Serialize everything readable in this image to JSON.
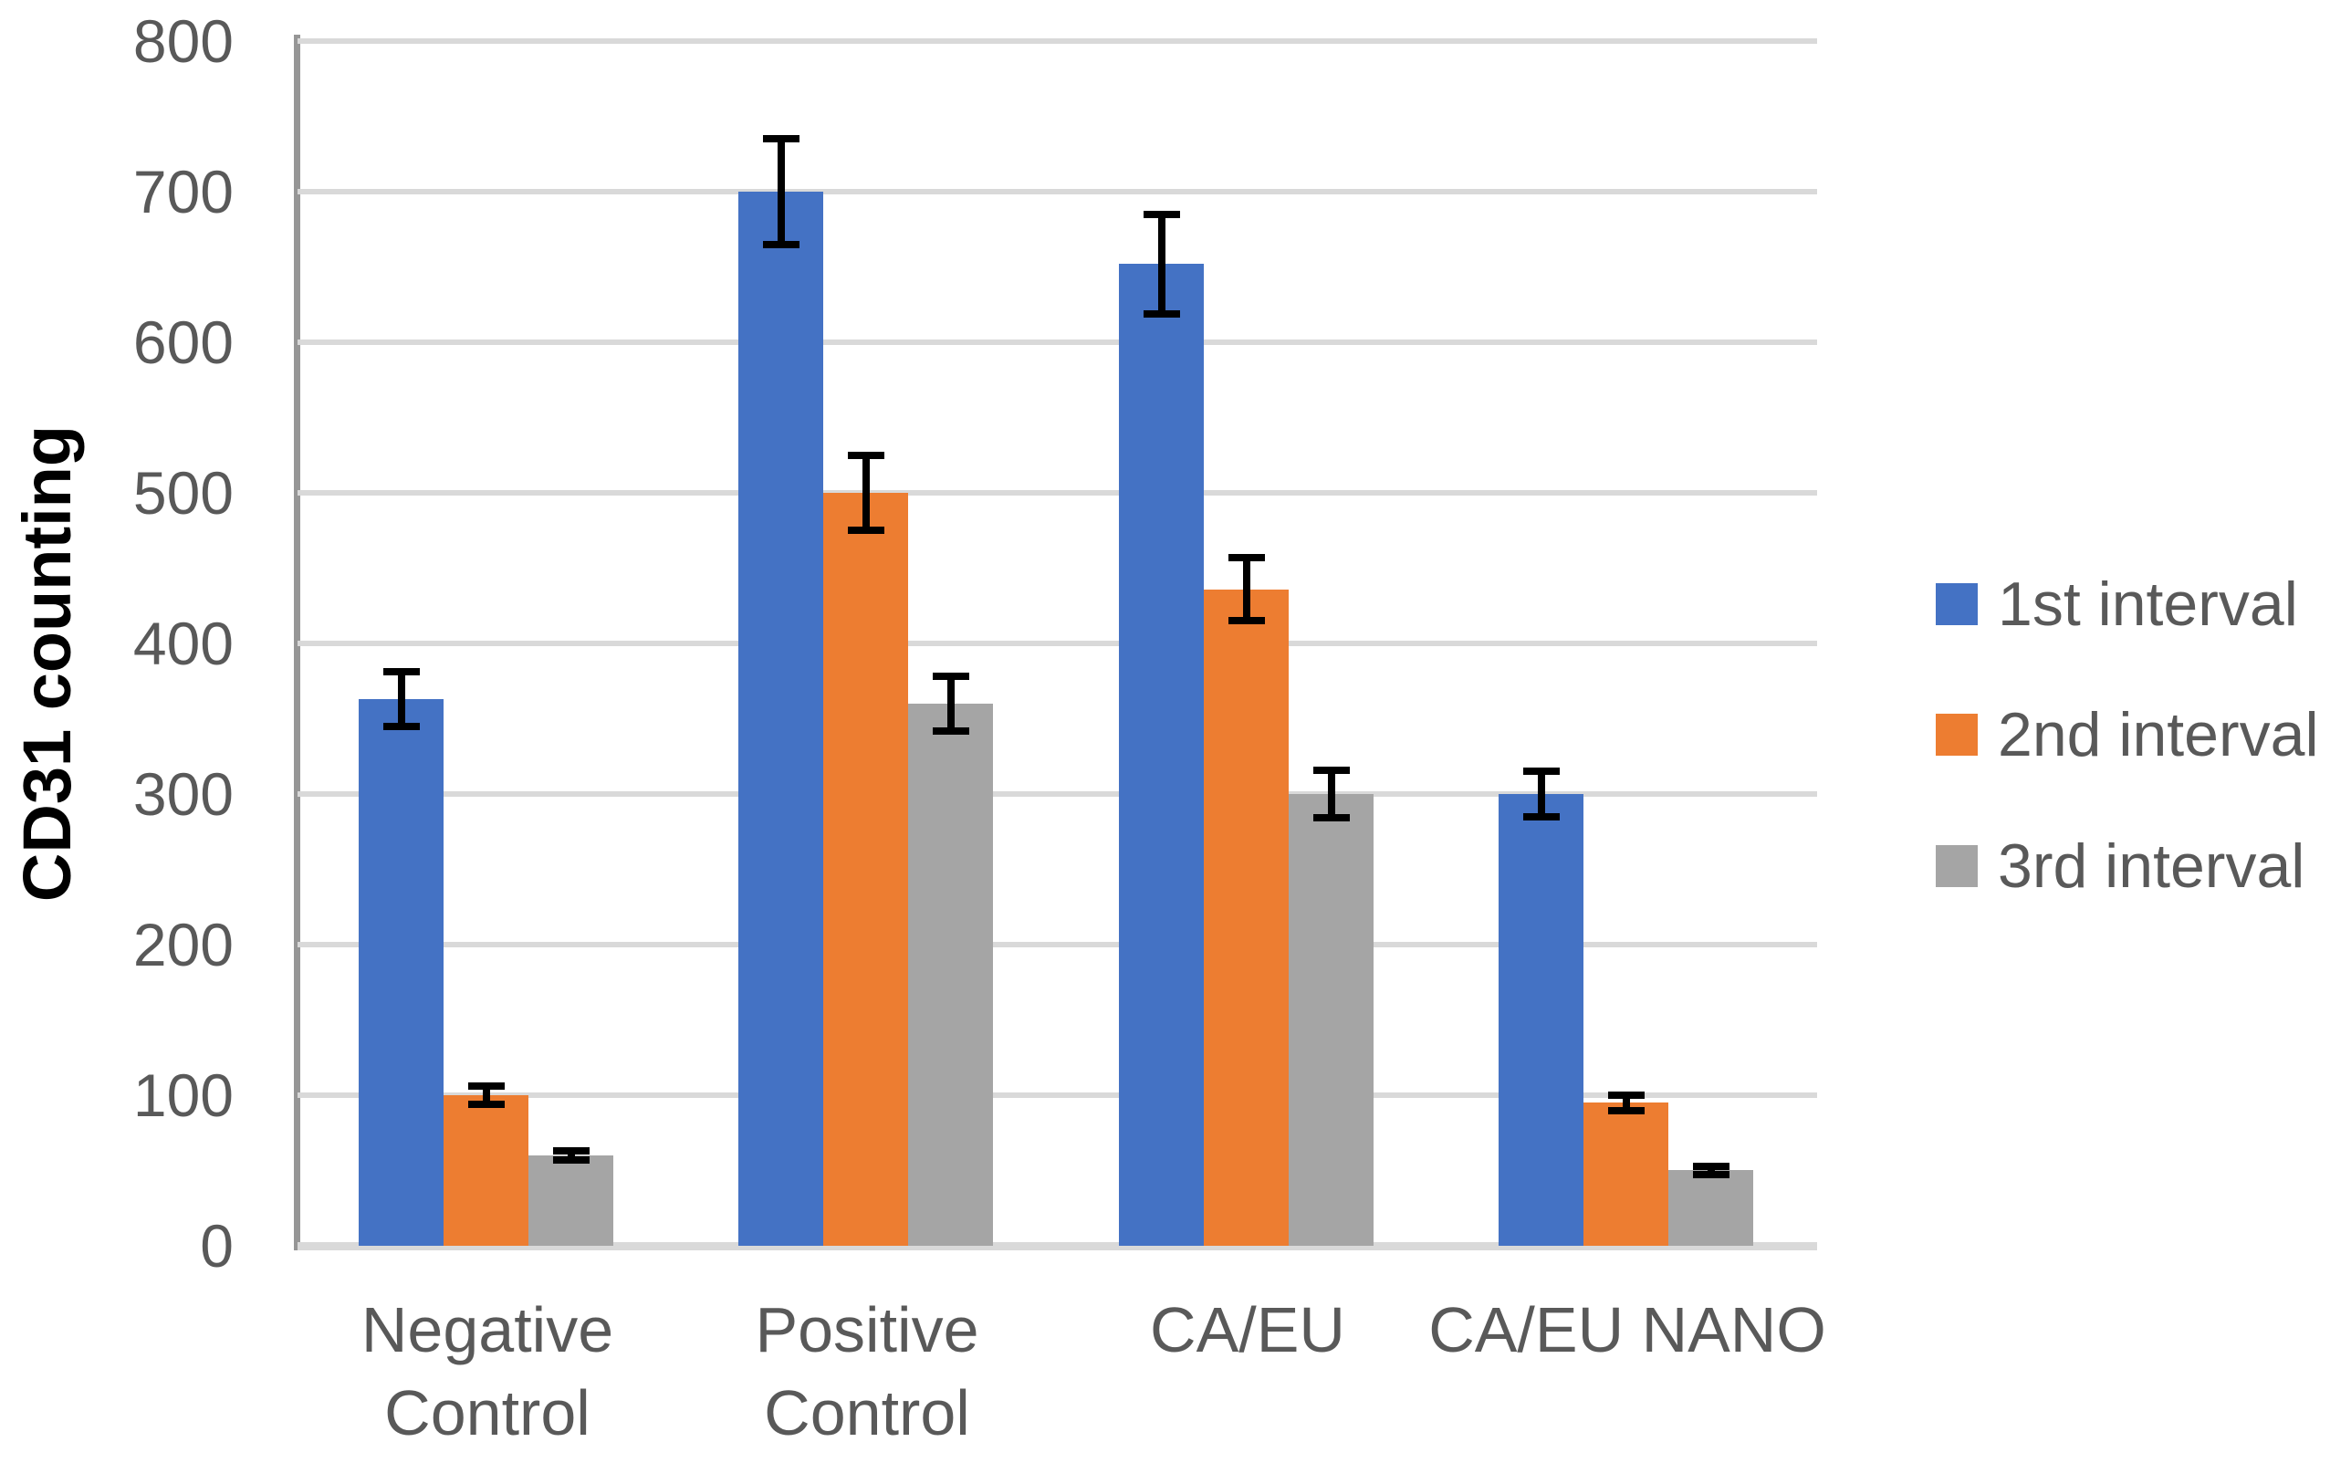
{
  "chart_data": {
    "type": "bar",
    "title": "",
    "ylabel": "CD31 counting",
    "xlabel": "",
    "categories": [
      "Negative Control",
      "Positive Control",
      "CA/EU",
      "CA/EU NANO"
    ],
    "category_label_lines": [
      [
        "Negative",
        "Control"
      ],
      [
        "Positive",
        "Control"
      ],
      [
        "CA/EU"
      ],
      [
        "CA/EU NANO"
      ]
    ],
    "series": [
      {
        "name": "1st interval",
        "color": "#4472C4",
        "values": [
          363,
          700,
          652,
          300
        ],
        "errors": [
          18,
          35,
          33,
          15
        ]
      },
      {
        "name": "2nd interval",
        "color": "#ED7D31",
        "values": [
          100,
          500,
          436,
          95
        ],
        "errors": [
          6,
          25,
          21,
          5
        ]
      },
      {
        "name": "3rd interval",
        "color": "#A5A5A5",
        "values": [
          60,
          360,
          300,
          50
        ],
        "errors": [
          3,
          18,
          16,
          3
        ]
      }
    ],
    "ylim": [
      0,
      800
    ],
    "yticks": [
      0,
      100,
      200,
      300,
      400,
      500,
      600,
      700,
      800
    ],
    "grid": true,
    "error_bars": true,
    "legend_position": "right"
  },
  "style": {
    "background": "#FFFFFF",
    "gridline_color": "#D9D9D9",
    "axis_line_color": "#969696",
    "tick_text_color": "#595959",
    "category_text_color": "#595959",
    "legend_text_color": "#595959",
    "y_title_color": "#000000",
    "error_bar_color": "#000000"
  }
}
